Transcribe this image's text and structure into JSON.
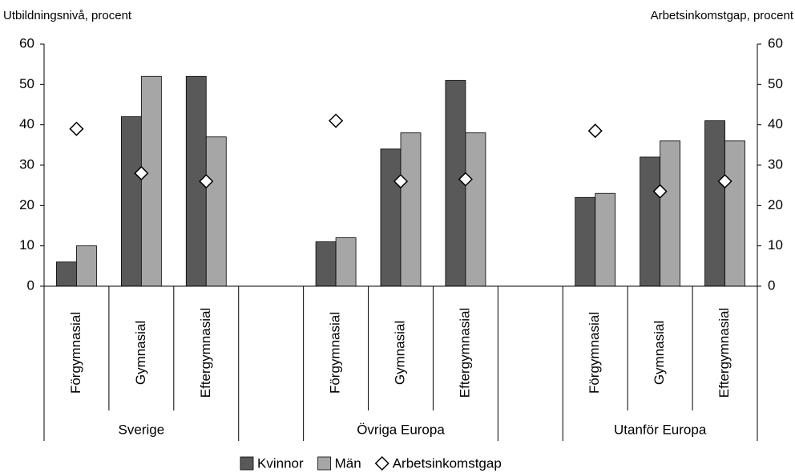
{
  "chart_data": {
    "type": "bar",
    "y_label": "Utbildningsnivå, procent",
    "y2_label": "Arbetsinkomstgap, procent",
    "categories": [
      "Förgymnasial",
      "Gymnasial",
      "Eftergymnasial",
      null,
      "Förgymnasial",
      "Gymnasial",
      "Eftergymnasial",
      null,
      "Förgymnasial",
      "Gymnasial",
      "Eftergymnasial"
    ],
    "groups": [
      "Sverige",
      "Övriga Europa",
      "Utanför Europa"
    ],
    "series": [
      {
        "name": "Kvinnor",
        "color": "#595959",
        "values": [
          6,
          42,
          52,
          null,
          11,
          34,
          51,
          null,
          22,
          32,
          41
        ]
      },
      {
        "name": "Män",
        "color": "#a6a6a6",
        "values": [
          10,
          52,
          37,
          null,
          12,
          38,
          38,
          null,
          23,
          36,
          36
        ]
      },
      {
        "name": "Arbetsinkomstgap",
        "type": "scatter",
        "marker": "diamond",
        "color": "#ffffff",
        "axis": "y2",
        "values": [
          39,
          28,
          26,
          null,
          41,
          26,
          26.5,
          null,
          38.5,
          23.5,
          26
        ]
      }
    ],
    "ylim": [
      0,
      60
    ],
    "yticks": [
      0,
      10,
      20,
      30,
      40,
      50,
      60
    ],
    "y2lim": [
      0,
      60
    ],
    "y2ticks": [
      0,
      10,
      20,
      30,
      40,
      50,
      60
    ],
    "legend": "bottom"
  }
}
